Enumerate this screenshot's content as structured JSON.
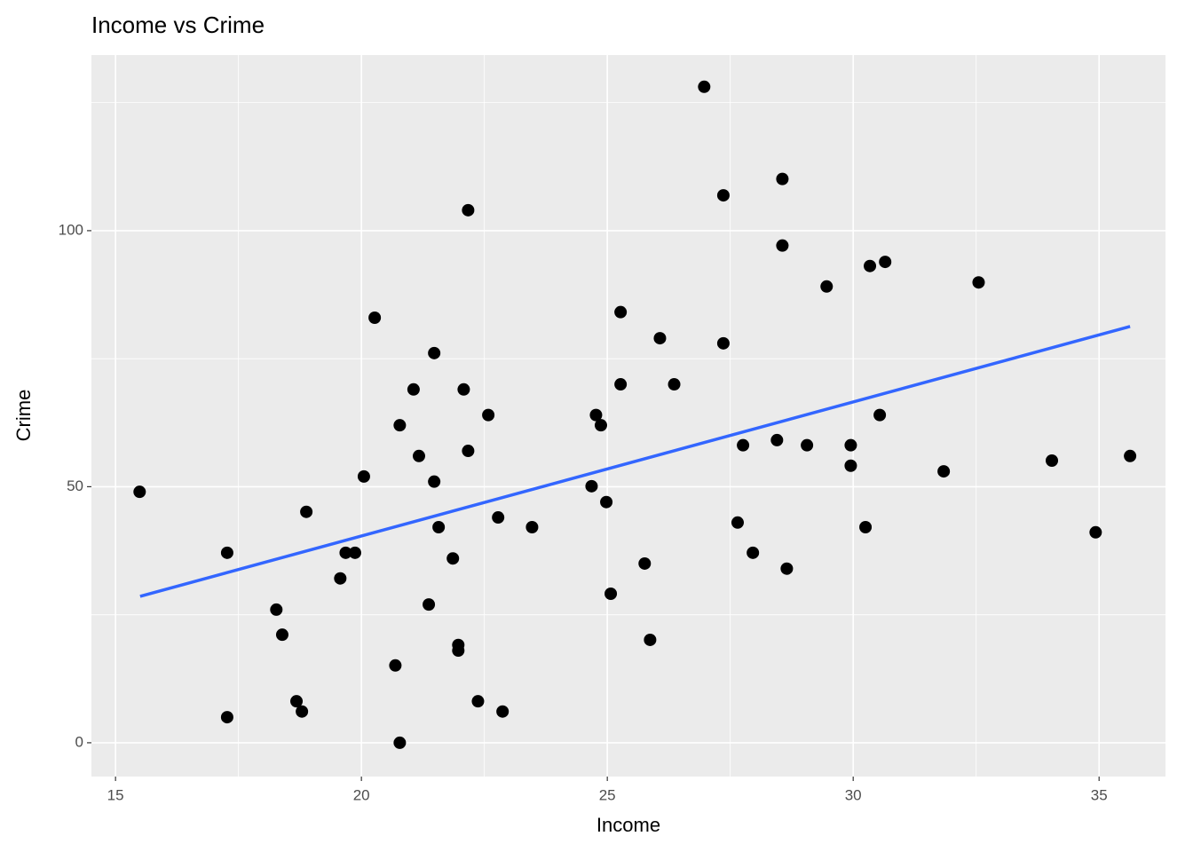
{
  "chart_data": {
    "type": "scatter",
    "title": "Income vs Crime",
    "x_label": "Income",
    "y_label": "Crime",
    "xlim": [
      14.51,
      36.35
    ],
    "ylim": [
      -6.6,
      134.3
    ],
    "xticks": [
      15,
      20,
      25,
      30,
      35
    ],
    "yticks": [
      0,
      50,
      100
    ],
    "grid": true,
    "series": [
      {
        "color": "#000000",
        "x": [
          15.49,
          17.27,
          17.27,
          18.27,
          18.39,
          18.68,
          18.79,
          18.88,
          19.57,
          19.68,
          19.87,
          20.05,
          20.27,
          20.69,
          20.78,
          20.78,
          21.06,
          21.17,
          21.37,
          21.48,
          21.48,
          21.57,
          21.86,
          21.97,
          21.97,
          22.08,
          22.17,
          22.17,
          22.37,
          22.58,
          22.78,
          22.87,
          23.47,
          24.68,
          24.77,
          24.87,
          24.98,
          25.07,
          25.27,
          25.27,
          25.76,
          25.87,
          26.07,
          26.36,
          26.97,
          27.36,
          27.36,
          27.65,
          27.76,
          27.96,
          28.45,
          28.56,
          28.56,
          28.65,
          29.06,
          29.46,
          29.95,
          29.95,
          30.25,
          30.34,
          30.54,
          30.65,
          31.84,
          32.55,
          34.04,
          34.93,
          35.63
        ],
        "values": [
          49,
          37.1,
          5,
          26,
          21.1,
          8.1,
          6.1,
          45.1,
          32.1,
          37.1,
          37.1,
          52,
          83,
          15.1,
          0,
          62,
          69,
          56,
          27,
          76.1,
          51,
          42.1,
          36,
          19.1,
          18,
          69,
          104,
          57,
          8.1,
          64,
          44,
          6.1,
          42.1,
          50.1,
          64,
          62,
          47,
          29.1,
          84.1,
          70,
          35,
          20.1,
          79,
          70,
          128.1,
          106.9,
          78,
          43,
          58.1,
          37.1,
          59.1,
          110.1,
          97.1,
          34,
          58.1,
          89.1,
          58.1,
          54.1,
          42.1,
          93.1,
          64,
          93.9,
          53,
          89.9,
          55.1,
          41.1,
          56
        ]
      },
      {
        "type": "line",
        "color": "#3366FF",
        "x": [
          15.5,
          35.63
        ],
        "values": [
          28.6,
          81.3
        ]
      }
    ]
  }
}
